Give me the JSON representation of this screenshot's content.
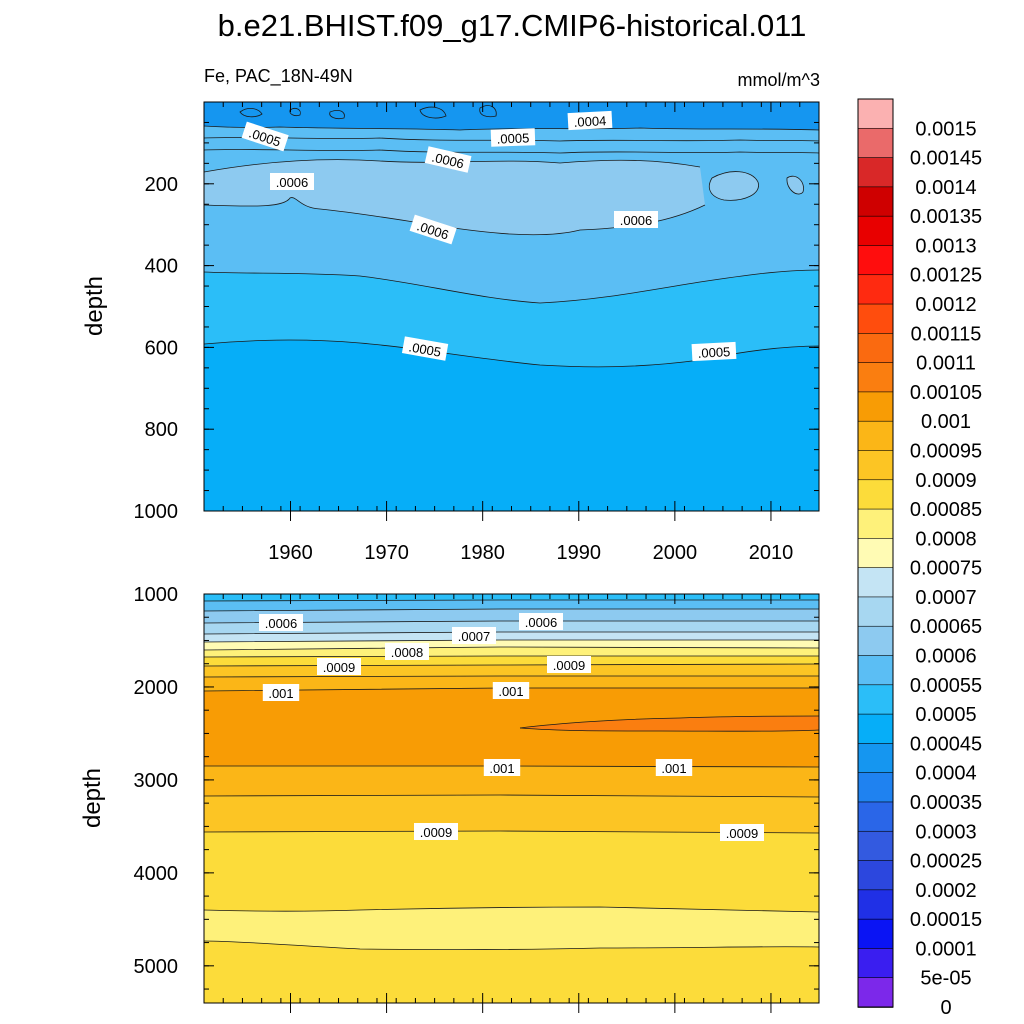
{
  "chart_data": {
    "type": "contour",
    "title": "b.e21.BHIST.f09_g17.CMIP6-historical.011",
    "variable_label": "Fe, PAC_18N-49N",
    "units": "mmol/m^3",
    "colorbar": {
      "levels": [
        "0.0015",
        "0.00145",
        "0.0014",
        "0.00135",
        "0.0013",
        "0.00125",
        "0.0012",
        "0.00115",
        "0.0011",
        "0.00105",
        "0.001",
        "0.00095",
        "0.0009",
        "0.00085",
        "0.0008",
        "0.00075",
        "0.0007",
        "0.00065",
        "0.0006",
        "0.00055",
        "0.0005",
        "0.00045",
        "0.0004",
        "0.00035",
        "0.0003",
        "0.00025",
        "0.0002",
        "0.00015",
        "0.0001",
        "5e-05",
        "0"
      ],
      "colors": [
        "#fbb1b1",
        "#ea6a6a",
        "#d92828",
        "#cf0000",
        "#e80000",
        "#ff0d0d",
        "#ff2a10",
        "#ff4d0d",
        "#fa6a10",
        "#fa7e10",
        "#f89c05",
        "#fbb617",
        "#fcc524",
        "#fcdc3a",
        "#fef17a",
        "#fffbb4",
        "#c4e4f4",
        "#a7d7f1",
        "#8dcaf0",
        "#5bbef4",
        "#2bbef8",
        "#06aef8",
        "#1596f0",
        "#1f82f0",
        "#2a66e8",
        "#335ae0",
        "#2c47de",
        "#2030e6",
        "#0a14f4",
        "#3a1ef0",
        "#7c28ea"
      ]
    },
    "panels": [
      {
        "name": "upper-ocean",
        "ylabel": "depth",
        "ylim": [
          0,
          1000
        ],
        "y_ticks": [
          "200",
          "400",
          "600",
          "800",
          "1000"
        ],
        "x_ticks": [
          "1960",
          "1970",
          "1980",
          "1990",
          "2000",
          "2010"
        ],
        "xlim": [
          1951,
          2015
        ],
        "contour_labels": [
          ".0004",
          ".0005",
          ".0005",
          ".0006",
          ".0006",
          ".0006",
          ".0006",
          ".0005",
          ".0005"
        ]
      },
      {
        "name": "deep-ocean",
        "ylabel": "depth",
        "ylim": [
          1000,
          5400
        ],
        "y_ticks": [
          "1000",
          "2000",
          "3000",
          "4000",
          "5000"
        ],
        "xlim": [
          1951,
          2015
        ],
        "contour_labels": [
          ".0006",
          ".0006",
          ".0007",
          ".0008",
          ".0009",
          ".0009",
          ".001",
          ".001",
          ".001",
          ".001",
          ".0009",
          ".0009"
        ]
      }
    ]
  }
}
